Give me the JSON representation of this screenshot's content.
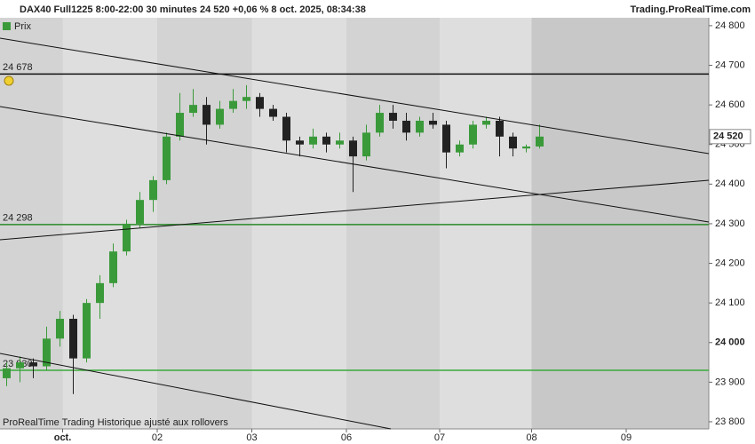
{
  "header": {
    "title": "DAX40 Full1225 8:00-22:00 30 minutes 24 520 +0,06 % 8 oct. 2025, 08:34:38",
    "site": "Trading.ProRealTime.com",
    "legend": "Prix",
    "footer": "ProRealTime Trading  Historique ajusté aux rollovers"
  },
  "chart_data": {
    "type": "candlestick",
    "open": [
      23910,
      23935,
      23950,
      23940,
      24010,
      24060,
      23960,
      24100,
      24150,
      24230,
      24300,
      24360,
      24410,
      24520,
      24580,
      24600,
      24550,
      24590,
      24610,
      24620,
      24590,
      24570,
      24510,
      24500,
      24520,
      24500,
      24510,
      24470,
      24530,
      24580,
      24560,
      24530,
      24560,
      24550,
      24480,
      24500,
      24550,
      24560,
      24520,
      24490,
      24495
    ],
    "high": [
      23950,
      23965,
      23960,
      24040,
      24080,
      24070,
      24110,
      24170,
      24250,
      24310,
      24380,
      24420,
      24530,
      24630,
      24640,
      24620,
      24610,
      24640,
      24650,
      24630,
      24600,
      24580,
      24520,
      24540,
      24530,
      24530,
      24520,
      24550,
      24600,
      24600,
      24580,
      24570,
      24580,
      24560,
      24510,
      24560,
      24570,
      24570,
      24530,
      24500,
      24550
    ],
    "low": [
      23890,
      23900,
      23910,
      23930,
      23990,
      23870,
      23950,
      24060,
      24140,
      24220,
      24290,
      24330,
      24400,
      24510,
      24570,
      24500,
      24540,
      24580,
      24590,
      24570,
      24560,
      24480,
      24470,
      24490,
      24480,
      24490,
      24380,
      24460,
      24520,
      24540,
      24510,
      24520,
      24540,
      24440,
      24470,
      24490,
      24540,
      24470,
      24470,
      24480,
      24490
    ],
    "close": [
      23935,
      23950,
      23940,
      24010,
      24060,
      23960,
      24100,
      24150,
      24230,
      24300,
      24360,
      24410,
      24520,
      24580,
      24600,
      24550,
      24590,
      24610,
      24620,
      24590,
      24570,
      24510,
      24500,
      24520,
      24500,
      24510,
      24470,
      24530,
      24580,
      24560,
      24530,
      24560,
      24550,
      24480,
      24500,
      24550,
      24560,
      24520,
      24490,
      24495,
      24520
    ],
    "up_color": "#3a9a3a",
    "down_color": "#222222",
    "xlim": [
      0,
      53.2
    ],
    "xticks": [
      {
        "value": 4.7,
        "label": "oct."
      },
      {
        "value": 11.8,
        "label": "02"
      },
      {
        "value": 18.9,
        "label": "03"
      },
      {
        "value": 26,
        "label": "06"
      },
      {
        "value": 33,
        "label": "07"
      },
      {
        "value": 39.9,
        "label": "08"
      },
      {
        "value": 47,
        "label": "09"
      }
    ],
    "ylim": [
      23782,
      24820
    ],
    "yticks": [
      {
        "value": 23800,
        "label": "23 800"
      },
      {
        "value": 23900,
        "label": "23 900"
      },
      {
        "value": 24000,
        "label": "24 000"
      },
      {
        "value": 24100,
        "label": "24 100"
      },
      {
        "value": 24200,
        "label": "24 200"
      },
      {
        "value": 24300,
        "label": "24 300"
      },
      {
        "value": 24400,
        "label": "24 400"
      },
      {
        "value": 24500,
        "label": "24 500"
      },
      {
        "value": 24600,
        "label": "24 600"
      },
      {
        "value": 24700,
        "label": "24 700"
      },
      {
        "value": 24800,
        "label": "24 800"
      }
    ],
    "levels": [
      {
        "value": 24678,
        "label": "24 678",
        "color": "#111111"
      },
      {
        "value": 24298,
        "label": "24 298",
        "color": "#2a8a2a"
      },
      {
        "value": 23930,
        "label": "23 930",
        "color": "#3aaa3a"
      }
    ],
    "last": {
      "value": 24520,
      "label": "24 520"
    }
  }
}
